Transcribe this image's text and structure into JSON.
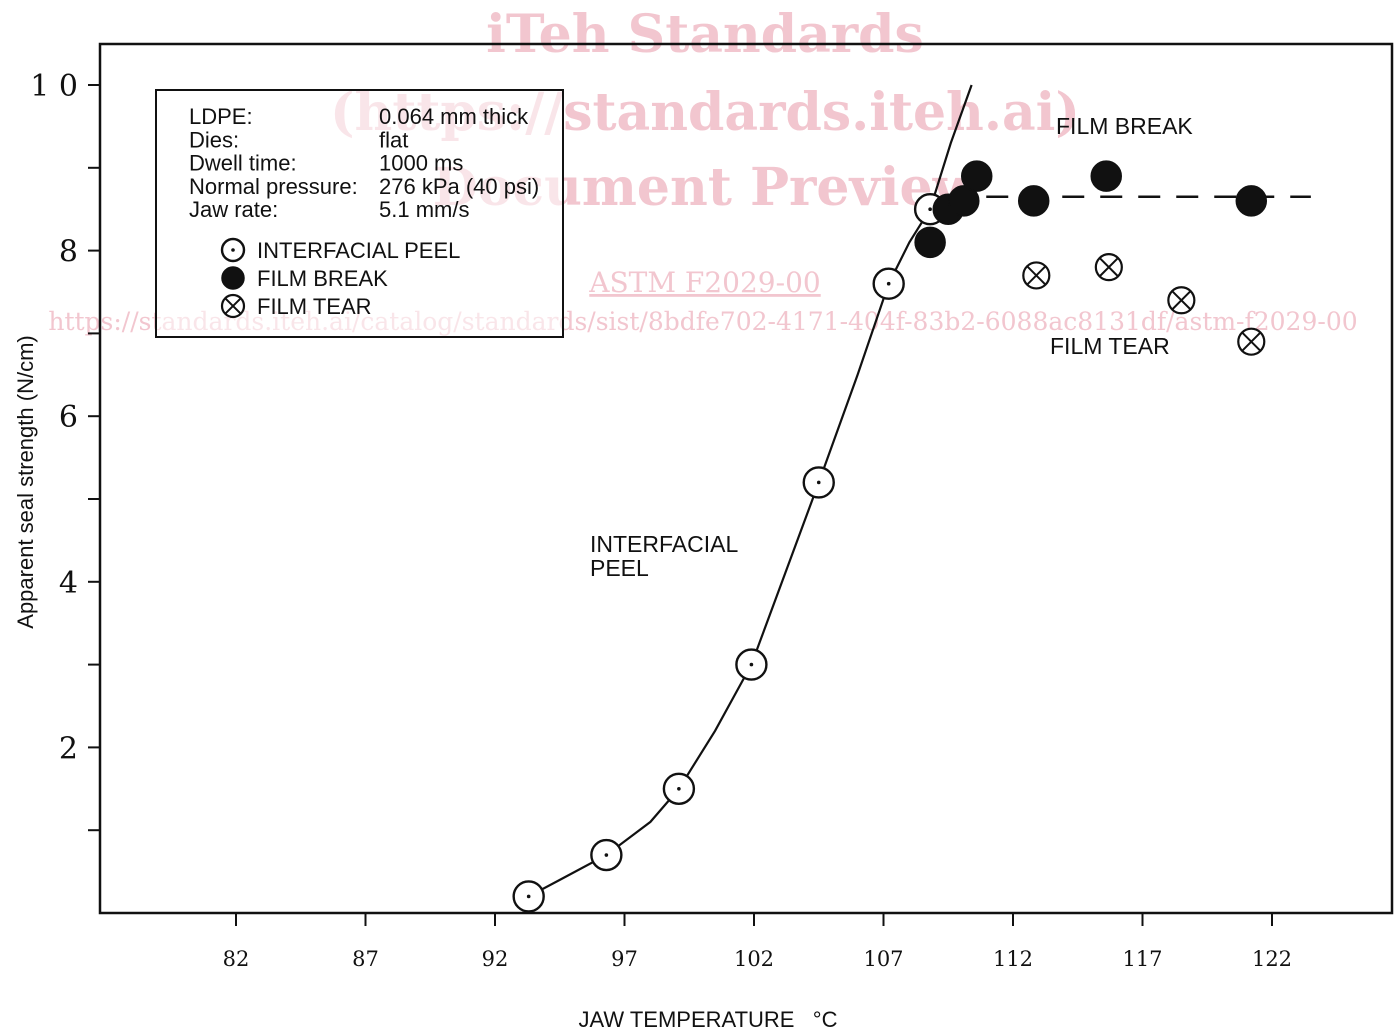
{
  "watermark": {
    "line1": "iTeh Standards",
    "line2": "(https://standards.iteh.ai)",
    "line3": "Document Preview",
    "line4": "ASTM F2029-00",
    "line5": "https://standards.iteh.ai/catalog/standards/sist/8bdfe702-4171-404f-83b2-6088ac8131df/astm-f2029-00"
  },
  "info_box": {
    "rows": [
      {
        "label": "LDPE:",
        "value": "0.064 mm thick"
      },
      {
        "label": "Dies:",
        "value": "flat"
      },
      {
        "label": "Dwell time:",
        "value": "1000 ms"
      },
      {
        "label": "Normal pressure:",
        "value": "276 kPa  (40 psi)"
      },
      {
        "label": "Jaw rate:",
        "value": "5.1 mm/s"
      }
    ]
  },
  "annotations": {
    "film_break": "FILM BREAK",
    "film_tear": "FILM TEAR",
    "interfacial_line1": "INTERFACIAL",
    "interfacial_line2": "PEEL"
  },
  "chart_data": {
    "type": "scatter",
    "xlabel": "JAW TEMPERATURE   °C",
    "ylabel": "Apparent seal strength (N/cm)",
    "xlim": [
      77,
      127
    ],
    "ylim": [
      0,
      10.5
    ],
    "x_ticks": [
      82,
      87,
      92,
      97,
      102,
      107,
      112,
      117,
      122
    ],
    "x_tick_labels": [
      "82",
      "87",
      "92",
      "97",
      "102",
      "107",
      "112",
      "117",
      "122"
    ],
    "y_ticks": [
      1,
      2,
      3,
      4,
      5,
      6,
      7,
      8,
      9,
      10
    ],
    "y_tick_labels": [
      "",
      "2",
      "",
      "4",
      "",
      "6",
      "",
      "8",
      "",
      "1 0"
    ],
    "grid": false,
    "legend_position": "top-left",
    "series": [
      {
        "name": "INTERFACIAL PEEL",
        "marker": "open-circle-dot",
        "x": [
          93.3,
          96.3,
          99.1,
          101.9,
          104.5,
          107.2,
          108.8
        ],
        "y": [
          0.2,
          0.7,
          1.5,
          3.0,
          5.2,
          7.6,
          8.5
        ]
      },
      {
        "name": "FILM BREAK",
        "marker": "filled-circle",
        "x": [
          108.8,
          109.5,
          110.1,
          110.6,
          112.8,
          115.6,
          121.2
        ],
        "y": [
          8.1,
          8.5,
          8.6,
          8.9,
          8.6,
          8.9,
          8.6
        ]
      },
      {
        "name": "FILM TEAR",
        "marker": "circle-x",
        "x": [
          112.9,
          115.7,
          118.5,
          121.2
        ],
        "y": [
          7.7,
          7.8,
          7.4,
          6.9
        ]
      }
    ],
    "fit_curve": {
      "x": [
        93.3,
        94.5,
        96.3,
        98.0,
        99.1,
        100.5,
        101.9,
        103.2,
        104.5,
        106.0,
        107.2,
        108.0,
        108.8,
        109.6,
        110.4
      ],
      "y": [
        0.2,
        0.4,
        0.7,
        1.1,
        1.5,
        2.2,
        3.0,
        4.1,
        5.2,
        6.5,
        7.6,
        8.1,
        8.5,
        9.3,
        10.0
      ]
    },
    "plateau_line": {
      "x": [
        109.5,
        123.5
      ],
      "y": [
        8.65,
        8.65
      ],
      "style": "dashed"
    }
  }
}
